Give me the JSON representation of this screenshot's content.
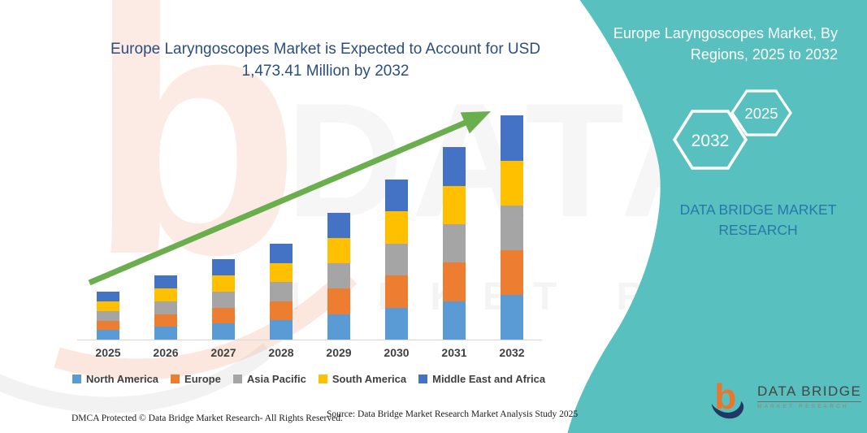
{
  "title": "Europe Laryngoscopes Market is Expected to Account for USD 1,473.41 Million by 2032",
  "side_panel": {
    "heading": "Europe Laryngoscopes Market, By Regions, 2025 to 2032",
    "hexagons": [
      {
        "label": "2032"
      },
      {
        "label": "2025"
      }
    ],
    "brand": "DATA BRIDGE MARKET RESEARCH",
    "bg_color": "#58C0BF"
  },
  "chart_data": {
    "type": "bar",
    "stacked": true,
    "title": "Europe Laryngoscopes Market is Expected to Account for USD 1,473.41 Million by 2032",
    "categories": [
      "2025",
      "2026",
      "2027",
      "2028",
      "2029",
      "2030",
      "2031",
      "2032"
    ],
    "series": [
      {
        "name": "North America",
        "color": "#5B9BD5",
        "values": [
          62.6,
          84.0,
          105.4,
          126.2,
          167.4,
          211.2,
          253.0,
          294.7
        ]
      },
      {
        "name": "Europe",
        "color": "#ED7D31",
        "values": [
          62.6,
          84.0,
          105.4,
          126.2,
          167.4,
          211.2,
          253.0,
          294.7
        ]
      },
      {
        "name": "Asia Pacific",
        "color": "#A5A5A5",
        "values": [
          62.6,
          84.0,
          105.4,
          126.2,
          167.4,
          211.2,
          253.0,
          294.7
        ]
      },
      {
        "name": "South America",
        "color": "#FFC000",
        "values": [
          62.6,
          84.0,
          105.4,
          126.2,
          167.4,
          211.2,
          253.0,
          294.7
        ]
      },
      {
        "name": "Middle East and Africa",
        "color": "#4472C4",
        "values": [
          62.6,
          84.0,
          105.4,
          126.2,
          167.4,
          211.2,
          253.0,
          294.7
        ]
      }
    ],
    "totals": [
      313,
      420,
      527,
      631,
      837,
      1056,
      1265,
      1473.41
    ],
    "units": "USD Million",
    "xlabel": "",
    "ylabel": "",
    "ylim": [
      0,
      1500
    ],
    "grid": false,
    "legend_position": "bottom",
    "annotations": [
      "green upward growth trend arrow"
    ],
    "arrow_color": "#6AAE4D"
  },
  "footer": {
    "dmca": "DMCA Protected © Data Bridge Market Research-  All Rights Reserved.",
    "source": "Source: Data Bridge Market Research  Market Analysis Study 2025"
  },
  "logo": {
    "glyph": "b",
    "title": "DATA BRIDGE",
    "subtitle": "MARKET RESEARCH"
  },
  "watermark": {
    "letter": "b",
    "text_top": "DATA BRIDGE",
    "text_mid": "MARKET RESEARCH"
  }
}
